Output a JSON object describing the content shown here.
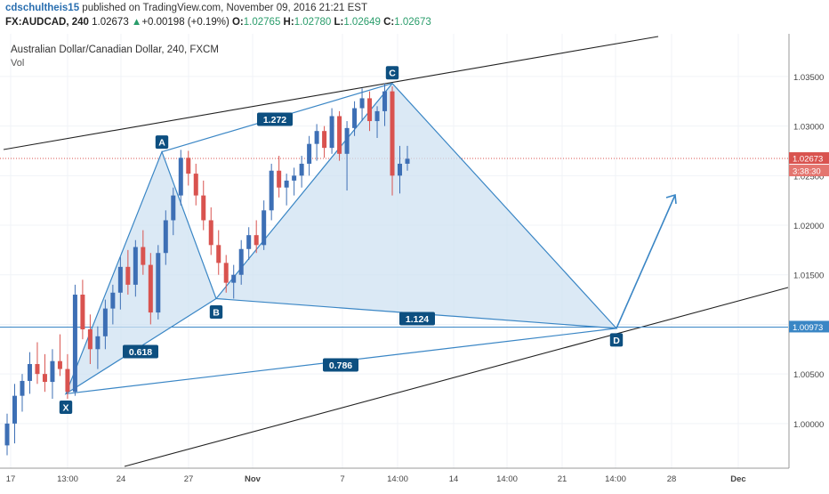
{
  "header": {
    "author": "cdschultheis15",
    "published": "published on TradingView.com, November 09, 2016 21:21 EST",
    "symbol": "FX:AUDCAD, 240",
    "last": "1.02673",
    "arrow": "▲",
    "change": "+0.00198 (+0.19%)",
    "o_label": "O:",
    "o_value": "1.02765",
    "h_label": "H:",
    "h_value": "1.02780",
    "l_label": "L:",
    "l_value": "1.02649",
    "c_label": "C:",
    "c_value": "1.02673"
  },
  "chart_data": {
    "type": "candlestick",
    "title": "Australian Dollar/Canadian Dollar, 240, FXCM",
    "indicator_label": "Vol",
    "ylim": [
      0.9955,
      1.0393
    ],
    "y_ticks": [
      "1.03500",
      "1.03000",
      "1.02500",
      "1.02000",
      "1.01500",
      "1.01000",
      "1.00500",
      "1.00000"
    ],
    "x_ticks": [
      "17",
      "13:00",
      "24",
      "27",
      "Nov",
      "7",
      "14:00",
      "14",
      "14:00",
      "21",
      "14:00",
      "28",
      "Dec"
    ],
    "price_labels": {
      "current_price": "1.02673",
      "countdown": "3:38:30",
      "level": "1.00973"
    },
    "current_price": 1.02673,
    "horizontal_level": 1.00973,
    "colors": {
      "up": "#3d6fb5",
      "down": "#d9534f",
      "pattern_fill": "#cfe1f1",
      "pattern_line": "#3a86c5",
      "label_bg": "#0d4f80"
    },
    "pattern": {
      "name": "Bat / harmonic XABCD",
      "points": [
        {
          "label": "X",
          "x": "Oct 20 13:00",
          "y": 1.003
        },
        {
          "label": "A",
          "x": "Oct 26",
          "y": 1.0274
        },
        {
          "label": "B",
          "x": "Oct 28",
          "y": 1.0126
        },
        {
          "label": "C",
          "x": "Nov 8 14:00",
          "y": 1.0343
        },
        {
          "label": "D",
          "x": "Nov 22 14:00",
          "y": 1.0096
        }
      ],
      "ratios": [
        {
          "label": "0.618",
          "between": "X-B"
        },
        {
          "label": "1.272",
          "between": "A-C"
        },
        {
          "label": "1.124",
          "between": "B-D"
        },
        {
          "label": "0.786",
          "between": "X-D"
        }
      ]
    },
    "candles": [
      {
        "o": 0.9978,
        "h": 1.001,
        "l": 0.9968,
        "c": 1.0
      },
      {
        "o": 1.0,
        "h": 1.004,
        "l": 0.998,
        "c": 1.0028
      },
      {
        "o": 1.0028,
        "h": 1.005,
        "l": 1.0012,
        "c": 1.0043
      },
      {
        "o": 1.0043,
        "h": 1.0072,
        "l": 1.003,
        "c": 1.006
      },
      {
        "o": 1.006,
        "h": 1.0082,
        "l": 1.004,
        "c": 1.005
      },
      {
        "o": 1.005,
        "h": 1.007,
        "l": 1.0032,
        "c": 1.0042
      },
      {
        "o": 1.0042,
        "h": 1.0075,
        "l": 1.0025,
        "c": 1.0063
      },
      {
        "o": 1.0063,
        "h": 1.009,
        "l": 1.0048,
        "c": 1.0055
      },
      {
        "o": 1.0055,
        "h": 1.007,
        "l": 1.0025,
        "c": 1.0032
      },
      {
        "o": 1.0032,
        "h": 1.014,
        "l": 1.0028,
        "c": 1.013
      },
      {
        "o": 1.013,
        "h": 1.0145,
        "l": 1.0085,
        "c": 1.0095
      },
      {
        "o": 1.0095,
        "h": 1.011,
        "l": 1.006,
        "c": 1.0075
      },
      {
        "o": 1.0075,
        "h": 1.0098,
        "l": 1.0055,
        "c": 1.0088
      },
      {
        "o": 1.0088,
        "h": 1.0125,
        "l": 1.0075,
        "c": 1.0116
      },
      {
        "o": 1.0116,
        "h": 1.014,
        "l": 1.01,
        "c": 1.0132
      },
      {
        "o": 1.0132,
        "h": 1.0168,
        "l": 1.0115,
        "c": 1.0158
      },
      {
        "o": 1.0158,
        "h": 1.0175,
        "l": 1.013,
        "c": 1.014
      },
      {
        "o": 1.014,
        "h": 1.0185,
        "l": 1.0128,
        "c": 1.0178
      },
      {
        "o": 1.0178,
        "h": 1.0195,
        "l": 1.015,
        "c": 1.016
      },
      {
        "o": 1.016,
        "h": 1.0172,
        "l": 1.01,
        "c": 1.0112
      },
      {
        "o": 1.0112,
        "h": 1.018,
        "l": 1.0105,
        "c": 1.0172
      },
      {
        "o": 1.0172,
        "h": 1.0215,
        "l": 1.016,
        "c": 1.0205
      },
      {
        "o": 1.0205,
        "h": 1.0238,
        "l": 1.019,
        "c": 1.023
      },
      {
        "o": 1.023,
        "h": 1.0276,
        "l": 1.022,
        "c": 1.0268
      },
      {
        "o": 1.0268,
        "h": 1.0275,
        "l": 1.024,
        "c": 1.0252
      },
      {
        "o": 1.0252,
        "h": 1.0262,
        "l": 1.022,
        "c": 1.023
      },
      {
        "o": 1.023,
        "h": 1.0245,
        "l": 1.0195,
        "c": 1.0205
      },
      {
        "o": 1.0205,
        "h": 1.0218,
        "l": 1.017,
        "c": 1.018
      },
      {
        "o": 1.018,
        "h": 1.0195,
        "l": 1.015,
        "c": 1.0162
      },
      {
        "o": 1.0162,
        "h": 1.017,
        "l": 1.0132,
        "c": 1.0142
      },
      {
        "o": 1.0142,
        "h": 1.016,
        "l": 1.0126,
        "c": 1.015
      },
      {
        "o": 1.015,
        "h": 1.0185,
        "l": 1.014,
        "c": 1.0176
      },
      {
        "o": 1.0176,
        "h": 1.0198,
        "l": 1.0165,
        "c": 1.019
      },
      {
        "o": 1.019,
        "h": 1.0205,
        "l": 1.0172,
        "c": 1.018
      },
      {
        "o": 1.018,
        "h": 1.0225,
        "l": 1.0175,
        "c": 1.0215
      },
      {
        "o": 1.0215,
        "h": 1.0262,
        "l": 1.0205,
        "c": 1.0255
      },
      {
        "o": 1.0255,
        "h": 1.027,
        "l": 1.0228,
        "c": 1.0238
      },
      {
        "o": 1.0238,
        "h": 1.0252,
        "l": 1.022,
        "c": 1.0245
      },
      {
        "o": 1.0245,
        "h": 1.0258,
        "l": 1.023,
        "c": 1.025
      },
      {
        "o": 1.025,
        "h": 1.027,
        "l": 1.0238,
        "c": 1.0262
      },
      {
        "o": 1.0262,
        "h": 1.029,
        "l": 1.025,
        "c": 1.0282
      },
      {
        "o": 1.0282,
        "h": 1.0302,
        "l": 1.0265,
        "c": 1.0295
      },
      {
        "o": 1.0295,
        "h": 1.03,
        "l": 1.0268,
        "c": 1.0278
      },
      {
        "o": 1.0278,
        "h": 1.0318,
        "l": 1.0272,
        "c": 1.031
      },
      {
        "o": 1.031,
        "h": 1.0315,
        "l": 1.0265,
        "c": 1.0272
      },
      {
        "o": 1.0272,
        "h": 1.0305,
        "l": 1.0235,
        "c": 1.0298
      },
      {
        "o": 1.0298,
        "h": 1.0325,
        "l": 1.029,
        "c": 1.0318
      },
      {
        "o": 1.0318,
        "h": 1.0338,
        "l": 1.0305,
        "c": 1.0328
      },
      {
        "o": 1.0328,
        "h": 1.0335,
        "l": 1.0295,
        "c": 1.0305
      },
      {
        "o": 1.0305,
        "h": 1.032,
        "l": 1.0288,
        "c": 1.0315
      },
      {
        "o": 1.0315,
        "h": 1.0343,
        "l": 1.03,
        "c": 1.0335
      },
      {
        "o": 1.0335,
        "h": 1.034,
        "l": 1.023,
        "c": 1.025
      },
      {
        "o": 1.025,
        "h": 1.028,
        "l": 1.0232,
        "c": 1.0262
      },
      {
        "o": 1.0262,
        "h": 1.028,
        "l": 1.0255,
        "c": 1.0267
      }
    ]
  }
}
